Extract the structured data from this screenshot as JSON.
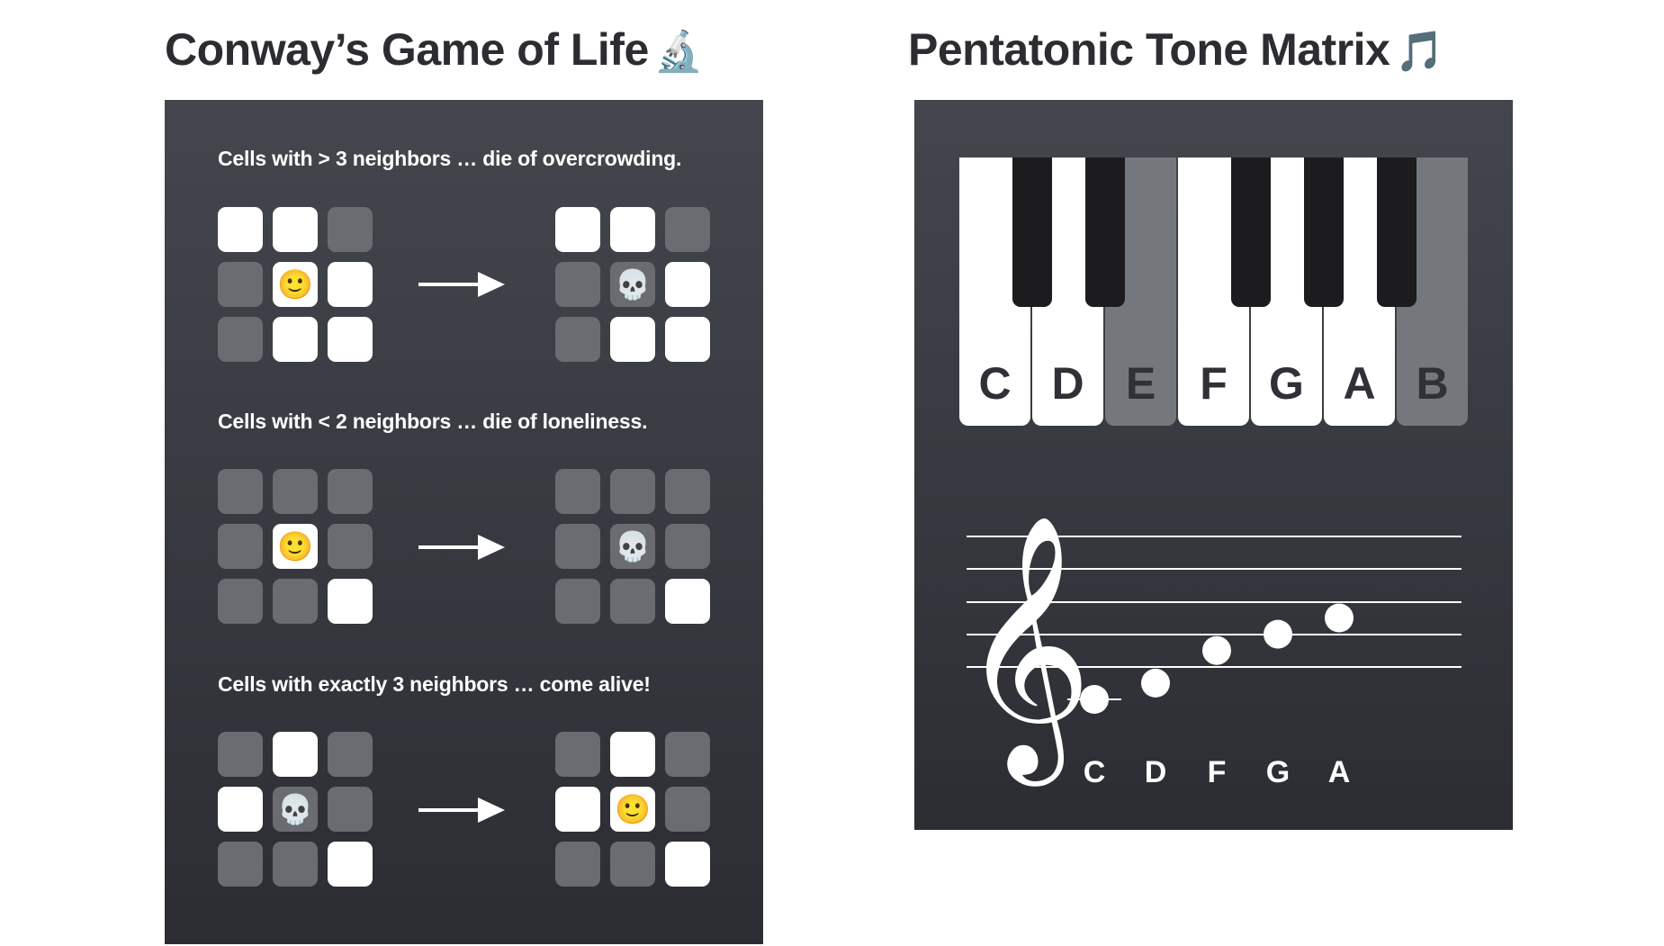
{
  "titles": {
    "left": "Conway’s Game of Life",
    "left_emoji": "🔬",
    "right": "Pentatonic Tone Matrix",
    "right_emoji": "🎵"
  },
  "life": {
    "rules": [
      {
        "label": "Cells with > 3 neighbors … die of overcrowding.",
        "before": [
          1,
          1,
          0,
          0,
          1,
          1,
          0,
          1,
          1
        ],
        "before_center": "🙂",
        "after": [
          1,
          1,
          0,
          0,
          0,
          1,
          0,
          1,
          1
        ],
        "after_center": "💀"
      },
      {
        "label": "Cells with < 2 neighbors … die of loneliness.",
        "before": [
          0,
          0,
          0,
          0,
          1,
          0,
          0,
          0,
          1
        ],
        "before_center": "🙂",
        "after": [
          0,
          0,
          0,
          0,
          0,
          0,
          0,
          0,
          1
        ],
        "after_center": "💀"
      },
      {
        "label": "Cells with exactly 3 neighbors … come alive!",
        "before": [
          0,
          1,
          0,
          1,
          0,
          0,
          0,
          0,
          1
        ],
        "before_center": "💀",
        "after": [
          0,
          1,
          0,
          1,
          1,
          0,
          0,
          0,
          1
        ],
        "after_center": "🙂"
      }
    ],
    "colors": {
      "alive": "#ffffff",
      "dead": "#6a6c71"
    }
  },
  "tone": {
    "white_keys": [
      {
        "note": "C",
        "active": true
      },
      {
        "note": "D",
        "active": true
      },
      {
        "note": "E",
        "active": false
      },
      {
        "note": "F",
        "active": true
      },
      {
        "note": "G",
        "active": true
      },
      {
        "note": "A",
        "active": true
      },
      {
        "note": "B",
        "active": false
      }
    ],
    "staff_notes": [
      "C",
      "D",
      "F",
      "G",
      "A"
    ],
    "clef_glyph": "𝄞"
  }
}
